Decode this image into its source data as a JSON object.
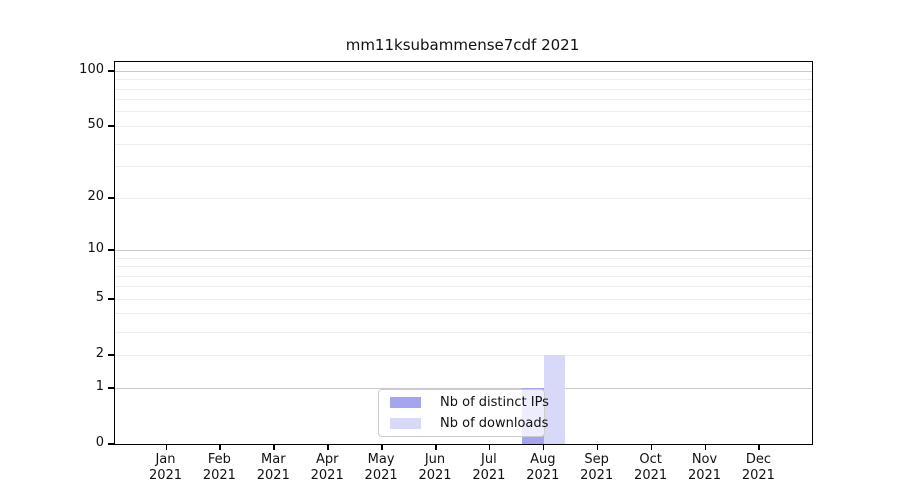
{
  "title": "mm11ksubammense7cdf 2021",
  "legend": {
    "items": [
      {
        "label": "Nb of distinct IPs",
        "color": "#a5a5ee"
      },
      {
        "label": "Nb of downloads",
        "color": "#d8d8f8"
      }
    ]
  },
  "x_axis": {
    "months": [
      "Jan",
      "Feb",
      "Mar",
      "Apr",
      "May",
      "Jun",
      "Jul",
      "Aug",
      "Sep",
      "Oct",
      "Nov",
      "Dec"
    ],
    "year": "2021"
  },
  "y_axis": {
    "tick_values": [
      0,
      1,
      2,
      5,
      10,
      20,
      50,
      100
    ]
  },
  "colors": {
    "distinct_ips_bar": "#a5a5ee",
    "downloads_bar": "#d8d8f8",
    "grid_major": "#c9c9c9",
    "grid_minor": "#ededed"
  },
  "chart_data": {
    "type": "bar",
    "title": "mm11ksubammense7cdf 2021",
    "categories": [
      "Jan 2021",
      "Feb 2021",
      "Mar 2021",
      "Apr 2021",
      "May 2021",
      "Jun 2021",
      "Jul 2021",
      "Aug 2021",
      "Sep 2021",
      "Oct 2021",
      "Nov 2021",
      "Dec 2021"
    ],
    "series": [
      {
        "name": "Nb of distinct IPs",
        "color": "#a5a5ee",
        "values": [
          0,
          0,
          0,
          0,
          0,
          0,
          0,
          1,
          0,
          0,
          0,
          0
        ]
      },
      {
        "name": "Nb of downloads",
        "color": "#d8d8f8",
        "values": [
          0,
          0,
          0,
          0,
          0,
          0,
          0,
          2,
          0,
          0,
          0,
          0
        ]
      }
    ],
    "xlabel": "",
    "ylabel": "",
    "y_scale": "log1p",
    "ylim": [
      0,
      112
    ],
    "y_ticks": [
      0,
      1,
      2,
      5,
      10,
      20,
      50,
      100
    ],
    "grid": {
      "major": [
        1,
        10,
        100
      ],
      "minor": [
        2,
        3,
        4,
        5,
        6,
        7,
        8,
        9,
        20,
        30,
        40,
        50,
        60,
        70,
        80,
        90
      ]
    },
    "legend_position": "lower center"
  }
}
